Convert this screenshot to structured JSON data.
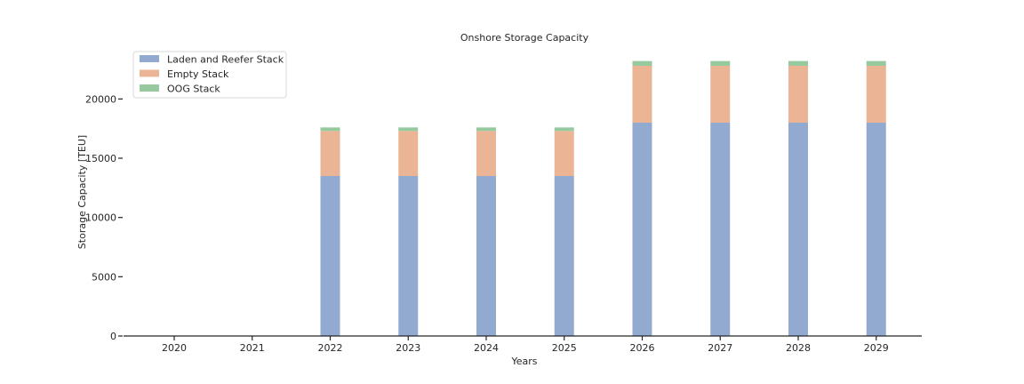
{
  "chart_data": {
    "type": "bar",
    "stacked": true,
    "title": "Onshore Storage Capacity",
    "xlabel": "Years",
    "ylabel": "Storage Capacity [TEU]",
    "categories": [
      "2020",
      "2021",
      "2022",
      "2023",
      "2024",
      "2025",
      "2026",
      "2027",
      "2028",
      "2029"
    ],
    "ylim": [
      0,
      24000
    ],
    "yticks": [
      0,
      5000,
      10000,
      15000,
      20000
    ],
    "ytick_labels": [
      "0",
      "5000",
      "10000",
      "15000",
      "20000"
    ],
    "grid": false,
    "legend_position": "top-left",
    "series": [
      {
        "name": "Laden and Reefer Stack",
        "color": "#92aacf",
        "values": [
          0,
          0,
          13500,
          13500,
          13500,
          13500,
          18000,
          18000,
          18000,
          18000
        ]
      },
      {
        "name": "Empty Stack",
        "color": "#ebb595",
        "values": [
          0,
          0,
          3800,
          3800,
          3800,
          3800,
          4800,
          4800,
          4800,
          4800
        ]
      },
      {
        "name": "OOG Stack",
        "color": "#96ca9e",
        "values": [
          0,
          0,
          300,
          300,
          300,
          300,
          400,
          400,
          400,
          400
        ]
      }
    ]
  }
}
